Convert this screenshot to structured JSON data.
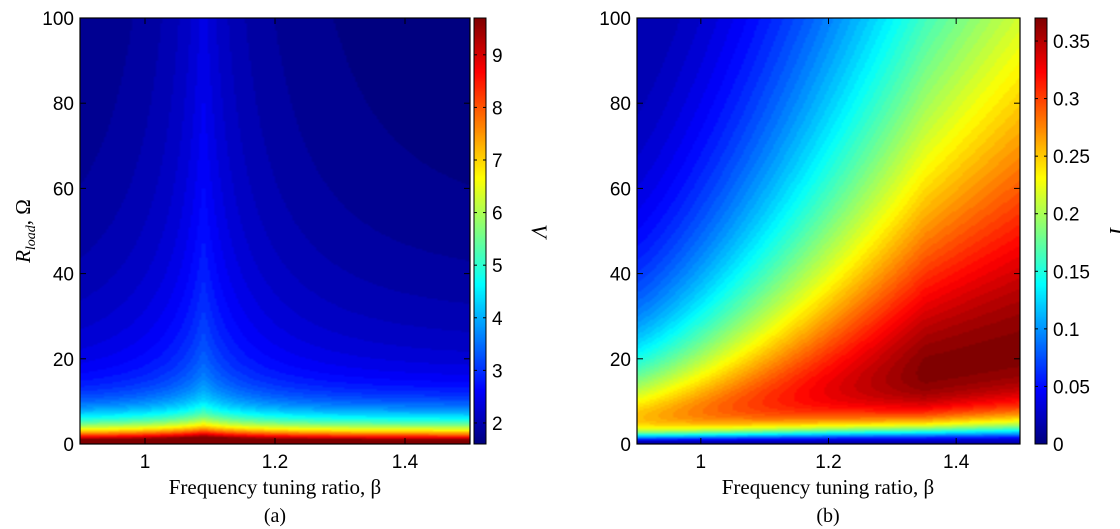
{
  "chart_data": [
    {
      "type": "heatmap",
      "panel_label": "(a)",
      "xlabel": "Frequency tuning ratio, β",
      "ylabel_main": "R",
      "ylabel_sub": "load",
      "ylabel_tail": ", Ω",
      "xlim": [
        0.9,
        1.5
      ],
      "ylim": [
        0,
        100
      ],
      "xticks": [
        1,
        1.2,
        1.4
      ],
      "xtick_labels": [
        "1",
        "1.2",
        "1.4"
      ],
      "yticks": [
        0,
        20,
        40,
        60,
        80,
        100
      ],
      "ytick_labels": [
        "0",
        "20",
        "40",
        "60",
        "80",
        "100"
      ],
      "colorbar": {
        "label": "V",
        "range": [
          1.6,
          9.7
        ],
        "ticks": [
          2,
          3,
          4,
          5,
          6,
          7,
          8,
          9
        ],
        "tick_labels": [
          "2",
          "3",
          "4",
          "5",
          "6",
          "7",
          "8",
          "9"
        ]
      },
      "colormap": "jet",
      "peak": {
        "x": 1.09,
        "y": 1.5,
        "value": 9.7
      },
      "surface_samples": [
        {
          "x": 1.0,
          "y": 100,
          "value": 2.0
        },
        {
          "x": 1.09,
          "y": 100,
          "value": 2.3
        },
        {
          "x": 1.5,
          "y": 100,
          "value": 1.7
        },
        {
          "x": 1.09,
          "y": 40,
          "value": 2.7
        },
        {
          "x": 1.09,
          "y": 20,
          "value": 3.3
        },
        {
          "x": 1.09,
          "y": 10,
          "value": 4.3
        },
        {
          "x": 1.09,
          "y": 5,
          "value": 5.8
        },
        {
          "x": 1.09,
          "y": 2,
          "value": 9.0
        }
      ]
    },
    {
      "type": "heatmap",
      "panel_label": "(b)",
      "xlabel": "Frequency tuning ratio, β",
      "ylabel_main": "",
      "xlim": [
        0.9,
        1.5
      ],
      "ylim": [
        0,
        100
      ],
      "xticks": [
        1,
        1.2,
        1.4
      ],
      "xtick_labels": [
        "1",
        "1.2",
        "1.4"
      ],
      "yticks": [
        0,
        20,
        40,
        60,
        80,
        100
      ],
      "ytick_labels": [
        "0",
        "20",
        "40",
        "60",
        "80",
        "100"
      ],
      "colorbar": {
        "label": "I",
        "range": [
          0,
          0.37
        ],
        "ticks": [
          0,
          0.05,
          0.1,
          0.15,
          0.2,
          0.25,
          0.3,
          0.35
        ],
        "tick_labels": [
          "0",
          "0.05",
          "0.1",
          "0.15",
          "0.2",
          "0.25",
          "0.3",
          "0.35"
        ]
      },
      "colormap": "jet",
      "peak": {
        "x": 1.35,
        "y": 10,
        "value": 0.37
      },
      "surface_samples": [
        {
          "x": 0.9,
          "y": 100,
          "value": 0.09
        },
        {
          "x": 1.5,
          "y": 100,
          "value": 0.21
        },
        {
          "x": 0.9,
          "y": 20,
          "value": 0.23
        },
        {
          "x": 1.2,
          "y": 50,
          "value": 0.23
        },
        {
          "x": 1.5,
          "y": 40,
          "value": 0.29
        },
        {
          "x": 1.3,
          "y": 10,
          "value": 0.36
        },
        {
          "x": 1.2,
          "y": 1,
          "value": 0.03
        }
      ]
    }
  ]
}
